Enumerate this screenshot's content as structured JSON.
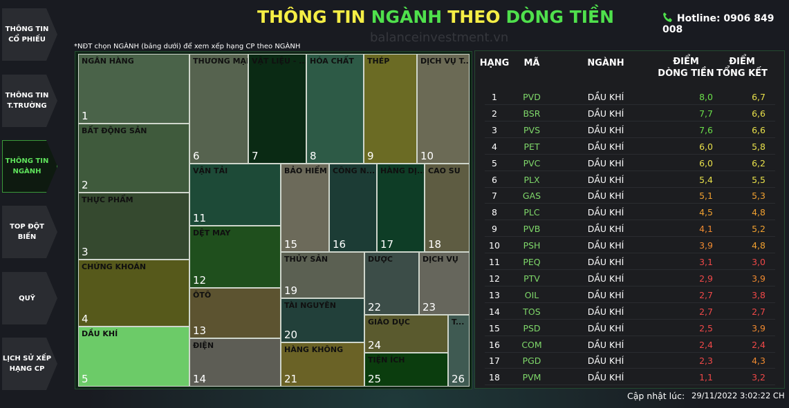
{
  "title": {
    "parts": [
      {
        "text": "THÔNG TIN",
        "color": "#f5ee45"
      },
      {
        "text": "NGÀNH",
        "color": "#4fe04c"
      },
      {
        "text": "THEO",
        "color": "#f5ee45"
      },
      {
        "text": "DÒNG TIỀN",
        "color": "#4fe04c"
      }
    ]
  },
  "watermark": "balanceinvestment.vn",
  "hotline": "Hotline: 0906 849 008",
  "nav": [
    {
      "lines": [
        "THÔNG TIN",
        "CỔ PHIẾU"
      ]
    },
    {
      "lines": [
        "THÔNG TIN",
        "T.TRƯỜNG"
      ]
    },
    {
      "lines": [
        "THÔNG TIN",
        "NGÀNH"
      ],
      "active": true
    },
    {
      "lines": [
        "TOP ĐỘT",
        "BIẾN"
      ]
    },
    {
      "lines": [
        "QUỸ"
      ]
    },
    {
      "lines": [
        "LỊCH SỬ XẾP",
        "HẠNG CP"
      ]
    }
  ],
  "note": "*NĐT chọn NGÀNH (bảng dưới) để xem xếp hạng CP theo NGÀNH",
  "treemap": [
    {
      "label": "NGÂN HÀNG",
      "rank": "1",
      "color": "#4a6349"
    },
    {
      "label": "BẤT ĐỘNG SẢN",
      "rank": "2",
      "color": "#3f5a3c"
    },
    {
      "label": "THỰC PHẨM",
      "rank": "3",
      "color": "#35492f"
    },
    {
      "label": "CHỨNG KHOÁN",
      "rank": "4",
      "color": "#56591b"
    },
    {
      "label": "DẦU KHÍ",
      "rank": "5",
      "color": "#6ccb68"
    },
    {
      "label": "THƯƠNG MẠI",
      "rank": "6",
      "color": "#56634f"
    },
    {
      "label": "VẬT LIỆU - ...",
      "rank": "7",
      "color": "#0a2a14"
    },
    {
      "label": "HÓA CHẤT",
      "rank": "8",
      "color": "#2d5a46"
    },
    {
      "label": "THÉP",
      "rank": "9",
      "color": "#6b6b24"
    },
    {
      "label": "DỊCH VỤ T...",
      "rank": "10",
      "color": "#6b6a55"
    },
    {
      "label": "VẬN TẢI",
      "rank": "11",
      "color": "#1d4a37"
    },
    {
      "label": "DỆT MAY",
      "rank": "12",
      "color": "#1f4f1d"
    },
    {
      "label": "ÔTÔ",
      "rank": "13",
      "color": "#5c5330"
    },
    {
      "label": "ĐIỆN",
      "rank": "14",
      "color": "#5d5d55"
    },
    {
      "label": "BẢO HIỂM",
      "rank": "15",
      "color": "#6c6a5a"
    },
    {
      "label": "CÔNG N...",
      "rank": "16",
      "color": "#1c3c35"
    },
    {
      "label": "HÀNG DỊ...",
      "rank": "17",
      "color": "#0e3d26"
    },
    {
      "label": "CAO SU",
      "rank": "18",
      "color": "#5e5c42"
    },
    {
      "label": "THỦY SẢN",
      "rank": "19",
      "color": "#5b6052"
    },
    {
      "label": "TÀI NGUYÊN",
      "rank": "20",
      "color": "#22403a"
    },
    {
      "label": "HÀNG KHÔNG",
      "rank": "21",
      "color": "#6a6226"
    },
    {
      "label": "DƯỢC",
      "rank": "22",
      "color": "#3c4d48"
    },
    {
      "label": "DỊCH VỤ",
      "rank": "23",
      "color": "#66665c"
    },
    {
      "label": "GIÁO DỤC",
      "rank": "24",
      "color": "#5a5a2e"
    },
    {
      "label": "TIỆN ÍCH",
      "rank": "25",
      "color": "#0b3d0e"
    },
    {
      "label": "T...",
      "rank": "26",
      "color": "#3f5a52"
    }
  ],
  "table": {
    "header": [
      [
        "HẠNG"
      ],
      [
        "MÃ"
      ],
      [
        "NGÀNH"
      ],
      [
        "ĐIỂM",
        "DÒNG TIỀN"
      ],
      [
        "ĐIỂM",
        "TỔNG KẾT"
      ]
    ],
    "rows": [
      [
        "1",
        "PVD",
        "DẦU KHÍ",
        "8,0",
        "6,7"
      ],
      [
        "2",
        "BSR",
        "DẦU KHÍ",
        "7,7",
        "6,6"
      ],
      [
        "3",
        "PVS",
        "DẦU KHÍ",
        "7,6",
        "6,6"
      ],
      [
        "4",
        "PET",
        "DẦU KHÍ",
        "6,0",
        "5,8"
      ],
      [
        "5",
        "PVC",
        "DẦU KHÍ",
        "6,0",
        "6,2"
      ],
      [
        "6",
        "PLX",
        "DẦU KHÍ",
        "5,4",
        "5,5"
      ],
      [
        "7",
        "GAS",
        "DẦU KHÍ",
        "5,1",
        "5,3"
      ],
      [
        "8",
        "PLC",
        "DẦU KHÍ",
        "4,5",
        "4,8"
      ],
      [
        "9",
        "PVB",
        "DẦU KHÍ",
        "4,1",
        "5,2"
      ],
      [
        "10",
        "PSH",
        "DẦU KHÍ",
        "3,9",
        "4,8"
      ],
      [
        "11",
        "PEQ",
        "DẦU KHÍ",
        "3,1",
        "3,0"
      ],
      [
        "12",
        "PTV",
        "DẦU KHÍ",
        "2,9",
        "3,9"
      ],
      [
        "13",
        "OIL",
        "DẦU KHÍ",
        "2,7",
        "3,8"
      ],
      [
        "14",
        "TOS",
        "DẦU KHÍ",
        "2,7",
        "2,7"
      ],
      [
        "15",
        "PSD",
        "DẦU KHÍ",
        "2,5",
        "3,9"
      ],
      [
        "16",
        "COM",
        "DẦU KHÍ",
        "2,4",
        "2,4"
      ],
      [
        "17",
        "PGD",
        "DẦU KHÍ",
        "2,3",
        "4,3"
      ],
      [
        "18",
        "PVM",
        "DẦU KHÍ",
        "1,1",
        "3,2"
      ]
    ]
  },
  "footer": {
    "label": "Cập nhật lúc:",
    "time": "29/11/2022 3:02:22 CH"
  }
}
